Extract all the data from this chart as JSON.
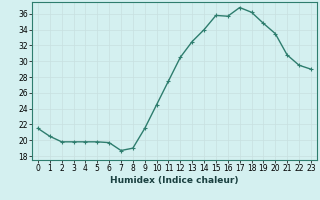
{
  "x": [
    0,
    1,
    2,
    3,
    4,
    5,
    6,
    7,
    8,
    9,
    10,
    11,
    12,
    13,
    14,
    15,
    16,
    17,
    18,
    19,
    20,
    21,
    22,
    23
  ],
  "y": [
    21.5,
    20.5,
    19.8,
    19.8,
    19.8,
    19.8,
    19.7,
    18.7,
    19.0,
    21.5,
    24.5,
    27.5,
    30.5,
    32.5,
    34.0,
    35.8,
    35.7,
    36.8,
    36.2,
    34.8,
    33.5,
    30.8,
    29.5,
    29.0
  ],
  "line_color": "#2e7d6e",
  "marker": "+",
  "marker_color": "#2e7d6e",
  "bg_color": "#d4f0f0",
  "grid_color": "#c8e0e0",
  "xlabel": "Humidex (Indice chaleur)",
  "xlim": [
    -0.5,
    23.5
  ],
  "ylim": [
    17.5,
    37.5
  ],
  "yticks": [
    18,
    20,
    22,
    24,
    26,
    28,
    30,
    32,
    34,
    36
  ],
  "xticks": [
    0,
    1,
    2,
    3,
    4,
    5,
    6,
    7,
    8,
    9,
    10,
    11,
    12,
    13,
    14,
    15,
    16,
    17,
    18,
    19,
    20,
    21,
    22,
    23
  ],
  "xlabel_fontsize": 6.5,
  "tick_fontsize": 5.5,
  "linewidth": 1.0,
  "markersize": 3
}
